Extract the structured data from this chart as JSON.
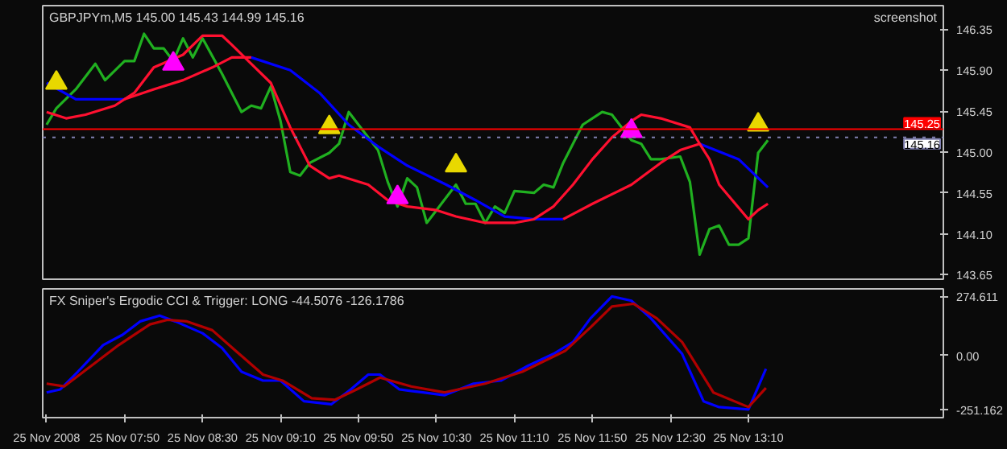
{
  "chart_data": [
    {
      "type": "line",
      "title": "GBPJPYm,M5  145.00 145.43 144.99 145.16",
      "annotations": [
        "screenshot"
      ],
      "xlim": [
        "2008-11-25T07:08",
        "2008-11-25T14:50"
      ],
      "ylim": [
        143.6,
        146.61
      ],
      "tick_labels": "y",
      "grid": false,
      "yticks": [
        146.35,
        {
          "value": 145.9,
          "label": "145.90"
        },
        145.45,
        {
          "value": 145.0,
          "label": "145.00"
        },
        144.55,
        {
          "value": 144.1,
          "label": "144.10"
        },
        143.65
      ],
      "ref_lines": [
        {
          "axis": "y",
          "value": 145.25,
          "label": "145.25",
          "color": "#ff0000",
          "line_style": "solid"
        },
        {
          "axis": "y",
          "value": 145.16,
          "label": "145.16",
          "color": "#8080b0",
          "line_style": "dotted"
        }
      ],
      "series": [
        {
          "color": "#20b020",
          "x": [
            "2008-11-25T07:10",
            "2008-11-25T07:15",
            "2008-11-25T07:25",
            "2008-11-25T07:35",
            "2008-11-25T07:40",
            "2008-11-25T07:50",
            "2008-11-25T07:55",
            "2008-11-25T08:00",
            "2008-11-25T08:05",
            "2008-11-25T08:10",
            "2008-11-25T08:15",
            "2008-11-25T08:20",
            "2008-11-25T08:25",
            "2008-11-25T08:30",
            "2008-11-25T08:40",
            "2008-11-25T08:50",
            "2008-11-25T08:55",
            "2008-11-25T09:00",
            "2008-11-25T09:05",
            "2008-11-25T09:10",
            "2008-11-25T09:15",
            "2008-11-25T09:20",
            "2008-11-25T09:25",
            "2008-11-25T09:35",
            "2008-11-25T09:40",
            "2008-11-25T09:45",
            "2008-11-25T09:55",
            "2008-11-25T10:00",
            "2008-11-25T10:05",
            "2008-11-25T10:10",
            "2008-11-25T10:15",
            "2008-11-25T10:20",
            "2008-11-25T10:25",
            "2008-11-25T10:30",
            "2008-11-25T10:40",
            "2008-11-25T10:45",
            "2008-11-25T10:50",
            "2008-11-25T10:55",
            "2008-11-25T11:00",
            "2008-11-25T11:05",
            "2008-11-25T11:10",
            "2008-11-25T11:20",
            "2008-11-25T11:25",
            "2008-11-25T11:30",
            "2008-11-25T11:35",
            "2008-11-25T11:40",
            "2008-11-25T11:45",
            "2008-11-25T11:55",
            "2008-11-25T12:00",
            "2008-11-25T12:10",
            "2008-11-25T12:15",
            "2008-11-25T12:20",
            "2008-11-25T12:25",
            "2008-11-25T12:35",
            "2008-11-25T12:40",
            "2008-11-25T12:45",
            "2008-11-25T12:50",
            "2008-11-25T12:55",
            "2008-11-25T13:00",
            "2008-11-25T13:05",
            "2008-11-25T13:10",
            "2008-11-25T13:15",
            "2008-11-25T13:20"
          ],
          "values": [
            145.3,
            145.48,
            145.69,
            145.97,
            145.79,
            146.0,
            146.0,
            146.3,
            146.14,
            146.14,
            146.0,
            146.25,
            146.04,
            146.25,
            145.86,
            145.44,
            145.51,
            145.48,
            145.72,
            145.34,
            144.78,
            144.74,
            144.88,
            144.99,
            145.09,
            145.44,
            145.16,
            145.02,
            144.67,
            144.4,
            144.71,
            144.61,
            144.22,
            144.36,
            144.64,
            144.43,
            144.43,
            144.22,
            144.4,
            144.33,
            144.57,
            144.55,
            144.64,
            144.61,
            144.88,
            145.09,
            145.3,
            145.44,
            145.41,
            145.13,
            145.09,
            144.92,
            144.92,
            144.95,
            144.67,
            143.87,
            144.15,
            144.19,
            143.98,
            143.98,
            144.05,
            144.99,
            145.13
          ]
        },
        {
          "color": "#0000ff",
          "x": [
            "2008-11-25T07:10",
            "2008-11-25T07:25",
            "2008-11-25T07:40",
            "2008-11-25T07:50"
          ],
          "values": [
            145.76,
            145.58,
            145.58,
            145.58
          ]
        },
        {
          "color": "#ff1030",
          "x": [
            "2008-11-25T07:50",
            "2008-11-25T08:05",
            "2008-11-25T08:20",
            "2008-11-25T08:35",
            "2008-11-25T08:45",
            "2008-11-25T08:55"
          ],
          "values": [
            145.58,
            145.69,
            145.79,
            145.93,
            146.04,
            146.04
          ]
        },
        {
          "color": "#0000ff",
          "x": [
            "2008-11-25T08:55",
            "2008-11-25T09:15",
            "2008-11-25T09:30",
            "2008-11-25T09:45",
            "2008-11-25T10:00",
            "2008-11-25T10:15",
            "2008-11-25T10:35",
            "2008-11-25T10:50",
            "2008-11-25T11:05",
            "2008-11-25T11:20",
            "2008-11-25T11:35"
          ],
          "values": [
            146.04,
            145.9,
            145.65,
            145.3,
            145.06,
            144.85,
            144.64,
            144.47,
            144.29,
            144.26,
            144.26
          ]
        },
        {
          "color": "#ff1030",
          "x": [
            "2008-11-25T11:35",
            "2008-11-25T11:50",
            "2008-11-25T12:10",
            "2008-11-25T12:25",
            "2008-11-25T12:35",
            "2008-11-25T12:45"
          ],
          "values": [
            144.26,
            144.43,
            144.64,
            144.88,
            145.02,
            145.09
          ]
        },
        {
          "color": "#0000ff",
          "x": [
            "2008-11-25T12:45",
            "2008-11-25T13:05",
            "2008-11-25T13:20"
          ],
          "values": [
            145.09,
            144.92,
            144.61
          ]
        },
        {
          "color": "#ff1030",
          "x": [
            "2008-11-25T07:10",
            "2008-11-25T07:20",
            "2008-11-25T07:30",
            "2008-11-25T07:45",
            "2008-11-25T07:55",
            "2008-11-25T08:05",
            "2008-11-25T08:20",
            "2008-11-25T08:30",
            "2008-11-25T08:40",
            "2008-11-25T08:45",
            "2008-11-25T08:55",
            "2008-11-25T09:05",
            "2008-11-25T09:15",
            "2008-11-25T09:25",
            "2008-11-25T09:35",
            "2008-11-25T09:40",
            "2008-11-25T09:55",
            "2008-11-25T10:05",
            "2008-11-25T10:15",
            "2008-11-25T10:30",
            "2008-11-25T10:40",
            "2008-11-25T10:55",
            "2008-11-25T11:10",
            "2008-11-25T11:20",
            "2008-11-25T11:30",
            "2008-11-25T11:40",
            "2008-11-25T11:50",
            "2008-11-25T12:00",
            "2008-11-25T12:10",
            "2008-11-25T12:15",
            "2008-11-25T12:25",
            "2008-11-25T12:40",
            "2008-11-25T12:45",
            "2008-11-25T12:50",
            "2008-11-25T12:55",
            "2008-11-25T13:10",
            "2008-11-25T13:15",
            "2008-11-25T13:20"
          ],
          "values": [
            145.44,
            145.37,
            145.41,
            145.51,
            145.65,
            145.93,
            146.07,
            146.28,
            146.28,
            146.18,
            145.97,
            145.76,
            145.27,
            144.85,
            144.71,
            144.74,
            144.64,
            144.47,
            144.4,
            144.36,
            144.29,
            144.22,
            144.22,
            144.26,
            144.4,
            144.64,
            144.92,
            145.16,
            145.34,
            145.41,
            145.37,
            145.27,
            145.09,
            144.92,
            144.64,
            144.26,
            144.36,
            144.43
          ]
        },
        {
          "type": "scatter",
          "marker": "triangle",
          "color": "#e8d800",
          "x": [
            "2008-11-25T07:15",
            "2008-11-25T09:35",
            "2008-11-25T10:40",
            "2008-11-25T13:15"
          ],
          "values": [
            145.76,
            145.27,
            144.85,
            145.3
          ]
        },
        {
          "type": "scatter",
          "marker": "triangle",
          "color": "#ff00ff",
          "x": [
            "2008-11-25T08:15",
            "2008-11-25T10:10",
            "2008-11-25T12:10"
          ],
          "values": [
            145.97,
            144.5,
            145.23
          ]
        }
      ]
    },
    {
      "type": "line",
      "title": "FX Sniper's Ergodic CCI & Trigger: LONG -44.5076 -126.1786",
      "xlim": [
        "2008-11-25T07:08",
        "2008-11-25T14:50"
      ],
      "ylim": [
        -289,
        309
      ],
      "grid": false,
      "yticks": [
        {
          "value": 274.611,
          "label": "274.611"
        },
        {
          "value": 0,
          "label": "0.00"
        },
        {
          "value": -251.162,
          "label": "-251.162"
        }
      ],
      "xticks": [
        {
          "value": "2008-11-25T07:10",
          "label": "25 Nov 2008"
        },
        {
          "value": "2008-11-25T07:50",
          "label": "25 Nov 07:50"
        },
        {
          "value": "2008-11-25T08:30",
          "label": "25 Nov 08:30"
        },
        {
          "value": "2008-11-25T09:10",
          "label": "25 Nov 09:10"
        },
        {
          "value": "2008-11-25T09:50",
          "label": "25 Nov 09:50"
        },
        {
          "value": "2008-11-25T10:30",
          "label": "25 Nov 10:30"
        },
        {
          "value": "2008-11-25T11:10",
          "label": "25 Nov 11:10"
        },
        {
          "value": "2008-11-25T11:50",
          "label": "25 Nov 11:50"
        },
        {
          "value": "2008-11-25T12:30",
          "label": "25 Nov 12:30"
        },
        {
          "value": "2008-11-25T13:10",
          "label": "25 Nov 13:10"
        }
      ],
      "series": [
        {
          "color": "#0000ff",
          "x": [
            "2008-11-25T07:10",
            "2008-11-25T07:17",
            "2008-11-25T07:26",
            "2008-11-25T07:39",
            "2008-11-25T07:49",
            "2008-11-25T07:58",
            "2008-11-25T08:08",
            "2008-11-25T08:16",
            "2008-11-25T08:30",
            "2008-11-25T08:40",
            "2008-11-25T08:50",
            "2008-11-25T09:01",
            "2008-11-25T09:10",
            "2008-11-25T09:22",
            "2008-11-25T09:36",
            "2008-11-25T09:46",
            "2008-11-25T09:55",
            "2008-11-25T10:01",
            "2008-11-25T10:11",
            "2008-11-25T10:23",
            "2008-11-25T10:34",
            "2008-11-25T10:49",
            "2008-11-25T11:03",
            "2008-11-25T11:17",
            "2008-11-25T11:30",
            "2008-11-25T11:40",
            "2008-11-25T11:49",
            "2008-11-25T12:00",
            "2008-11-25T12:10",
            "2008-11-25T12:20",
            "2008-11-25T12:36",
            "2008-11-25T12:47",
            "2008-11-25T12:55",
            "2008-11-25T13:10",
            "2008-11-25T13:19"
          ],
          "values": [
            -172,
            -158,
            -76,
            48,
            96,
            158,
            185,
            158,
            103,
            34,
            -76,
            -117,
            -117,
            -213,
            -227,
            -158,
            -89,
            -89,
            -158,
            -172,
            -185,
            -131,
            -117,
            -48,
            7,
            62,
            172,
            274,
            254,
            172,
            7,
            -213,
            -240,
            -251,
            -62
          ]
        },
        {
          "color": "#b00000",
          "x": [
            "2008-11-25T07:10",
            "2008-11-25T07:19",
            "2008-11-25T07:33",
            "2008-11-25T07:47",
            "2008-11-25T08:03",
            "2008-11-25T08:12",
            "2008-11-25T08:22",
            "2008-11-25T08:35",
            "2008-11-25T08:47",
            "2008-11-25T09:01",
            "2008-11-25T09:11",
            "2008-11-25T09:26",
            "2008-11-25T09:38",
            "2008-11-25T09:49",
            "2008-11-25T10:01",
            "2008-11-25T10:17",
            "2008-11-25T10:34",
            "2008-11-25T10:55",
            "2008-11-25T11:14",
            "2008-11-25T11:36",
            "2008-11-25T11:49",
            "2008-11-25T12:00",
            "2008-11-25T12:11",
            "2008-11-25T12:23",
            "2008-11-25T12:36",
            "2008-11-25T12:52",
            "2008-11-25T13:10",
            "2008-11-25T13:19"
          ],
          "values": [
            -131,
            -144,
            -48,
            48,
            144,
            165,
            158,
            117,
            21,
            -89,
            -117,
            -199,
            -206,
            -158,
            -103,
            -144,
            -172,
            -131,
            -76,
            21,
            130,
            227,
            240,
            172,
            62,
            -172,
            -240,
            -151
          ]
        }
      ]
    }
  ]
}
